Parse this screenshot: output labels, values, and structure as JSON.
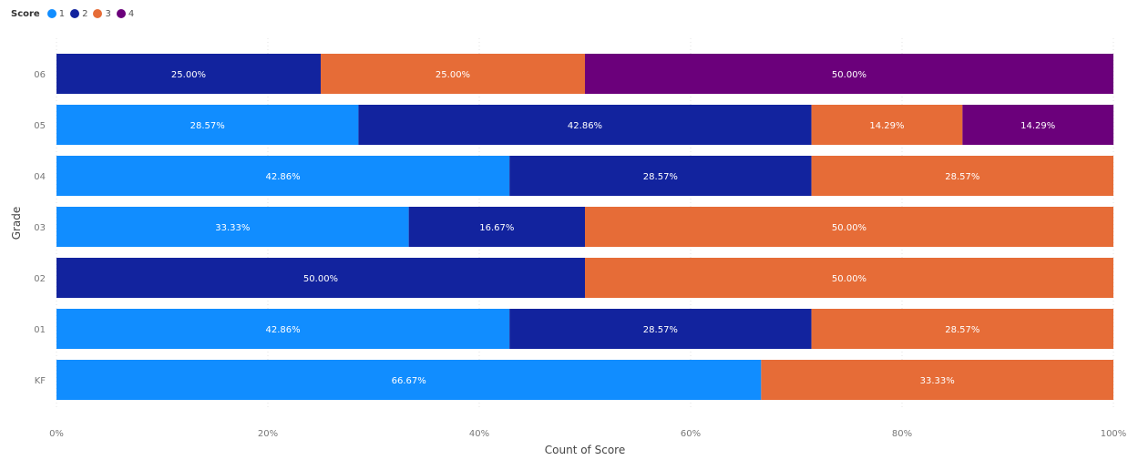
{
  "chart_data": {
    "type": "bar",
    "orientation": "horizontal",
    "stacked": "100%",
    "legend": {
      "title": "Score",
      "position": "top-left"
    },
    "categories": [
      "06",
      "05",
      "04",
      "03",
      "02",
      "01",
      "KF"
    ],
    "series": [
      {
        "name": "1",
        "color": "#118dff",
        "values": [
          0,
          28.57,
          42.86,
          33.33,
          0,
          42.86,
          66.67
        ]
      },
      {
        "name": "2",
        "color": "#12239e",
        "values": [
          25.0,
          42.86,
          28.57,
          16.67,
          50.0,
          28.57,
          0
        ]
      },
      {
        "name": "3",
        "color": "#e66c37",
        "values": [
          25.0,
          14.29,
          28.57,
          50.0,
          50.0,
          28.57,
          33.33
        ]
      },
      {
        "name": "4",
        "color": "#6b007b",
        "values": [
          50.0,
          14.29,
          0,
          0,
          0,
          0,
          0
        ]
      }
    ],
    "data_labels": [
      [
        "",
        "25.00%",
        "25.00%",
        "50.00%"
      ],
      [
        "28.57%",
        "42.86%",
        "14.29%",
        "14.29%"
      ],
      [
        "42.86%",
        "28.57%",
        "28.57%",
        ""
      ],
      [
        "33.33%",
        "16.67%",
        "50.00%",
        ""
      ],
      [
        "",
        "50.00%",
        "50.00%",
        ""
      ],
      [
        "42.86%",
        "28.57%",
        "28.57%",
        ""
      ],
      [
        "66.67%",
        "",
        "33.33%",
        ""
      ]
    ],
    "xlabel": "Count of Score",
    "ylabel": "Grade",
    "xlim": [
      0,
      100
    ],
    "x_ticks": [
      "0%",
      "20%",
      "40%",
      "60%",
      "80%",
      "100%"
    ],
    "x_tick_values": [
      0,
      20,
      40,
      60,
      80,
      100
    ],
    "grid": true
  }
}
